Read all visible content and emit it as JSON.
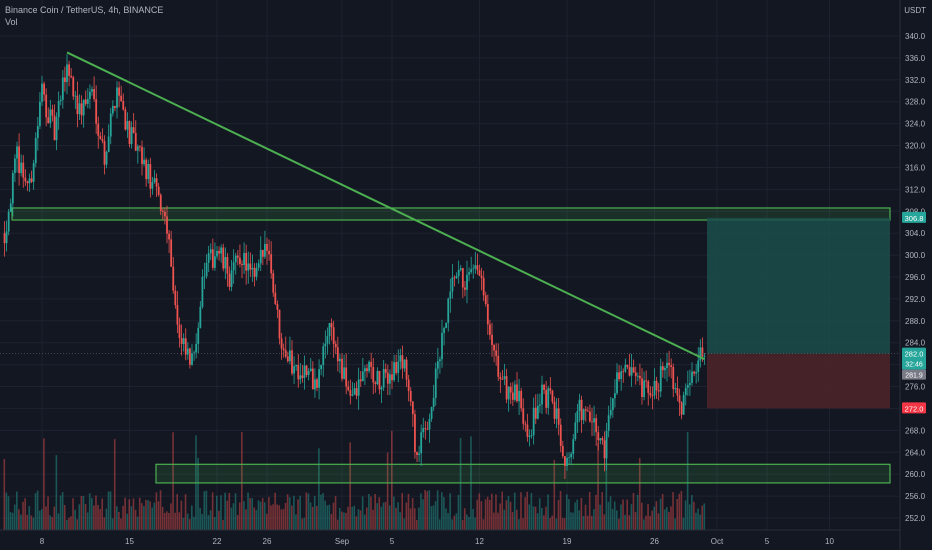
{
  "header": {
    "symbol_line": "Binance Coin / TetherUS, 4h, BINANCE",
    "indicator_label": "Vol"
  },
  "axis": {
    "unit_label": "USDT",
    "y_ticks": [
      "340.0",
      "336.0",
      "332.0",
      "328.0",
      "324.0",
      "320.0",
      "316.0",
      "312.0",
      "308.0",
      "304.0",
      "300.0",
      "296.0",
      "292.0",
      "288.0",
      "284.0",
      "280.0",
      "276.0",
      "272.0",
      "268.0",
      "264.0",
      "260.0",
      "256.0",
      "252.0"
    ],
    "x_ticks": [
      "8",
      "15",
      "22",
      "26",
      "Sep",
      "5",
      "12",
      "19",
      "26",
      "Oct",
      "5",
      "10"
    ]
  },
  "price_tags": {
    "target": "306.8",
    "current": "282.0",
    "countdown": "32:46",
    "prev": "281.9",
    "stop": "272.0"
  },
  "colors": {
    "background": "#131722",
    "up": "#26a69a",
    "down": "#ef5350",
    "trendline": "#4caf50",
    "zone_stroke": "#4caf50",
    "target_zone": "#1b4d4a",
    "stop_zone": "#4a2329"
  },
  "chart_data": {
    "type": "candlestick",
    "timeframe": "4h",
    "x_dates": [
      "Aug 8",
      "Aug 15",
      "Aug 22",
      "Aug 26",
      "Sep 1",
      "Sep 5",
      "Sep 12",
      "Sep 19",
      "Sep 26",
      "Oct 1",
      "Oct 5",
      "Oct 10"
    ],
    "ylim": [
      250,
      343
    ],
    "price_path": [
      [
        "Aug 5",
        304
      ],
      [
        "Aug 6",
        318
      ],
      [
        "Aug 7",
        312
      ],
      [
        "Aug 8",
        330
      ],
      [
        "Aug 9",
        322
      ],
      [
        "Aug 10",
        335
      ],
      [
        "Aug 11",
        326
      ],
      [
        "Aug 12",
        330
      ],
      [
        "Aug 13",
        318
      ],
      [
        "Aug 14",
        331
      ],
      [
        "Aug 15",
        322
      ],
      [
        "Aug 16",
        317
      ],
      [
        "Aug 17",
        312
      ],
      [
        "Aug 18",
        306
      ],
      [
        "Aug 19",
        284
      ],
      [
        "Aug 20",
        280
      ],
      [
        "Aug 21",
        297
      ],
      [
        "Aug 22",
        301
      ],
      [
        "Aug 23",
        296
      ],
      [
        "Aug 24",
        300
      ],
      [
        "Aug 25",
        295
      ],
      [
        "Aug 26",
        303
      ],
      [
        "Aug 27",
        286
      ],
      [
        "Aug 28",
        280
      ],
      [
        "Aug 29",
        279
      ],
      [
        "Aug 30",
        276
      ],
      [
        "Aug 31",
        288
      ],
      [
        "Sep 1",
        278
      ],
      [
        "Sep 2",
        274
      ],
      [
        "Sep 3",
        280
      ],
      [
        "Sep 4",
        276
      ],
      [
        "Sep 5",
        279
      ],
      [
        "Sep 6",
        281
      ],
      [
        "Sep 7",
        263
      ],
      [
        "Sep 8",
        271
      ],
      [
        "Sep 9",
        284
      ],
      [
        "Sep 10",
        296
      ],
      [
        "Sep 11",
        295
      ],
      [
        "Sep 12",
        297
      ],
      [
        "Sep 13",
        282
      ],
      [
        "Sep 14",
        276
      ],
      [
        "Sep 15",
        274
      ],
      [
        "Sep 16",
        268
      ],
      [
        "Sep 17",
        275
      ],
      [
        "Sep 18",
        272
      ],
      [
        "Sep 19",
        262
      ],
      [
        "Sep 20",
        272
      ],
      [
        "Sep 21",
        269
      ],
      [
        "Sep 22",
        265
      ],
      [
        "Sep 23",
        279
      ],
      [
        "Sep 24",
        278
      ],
      [
        "Sep 25",
        275
      ],
      [
        "Sep 26",
        275
      ],
      [
        "Sep 27",
        282
      ],
      [
        "Sep 28",
        271
      ],
      [
        "Sep 29",
        280
      ],
      [
        "Sep 30",
        282
      ]
    ],
    "trendline": {
      "from": [
        "Aug 10",
        337
      ],
      "to": [
        "Sep 30",
        281
      ]
    },
    "resistance_zone": [
      306.4,
      308.6
    ],
    "support_zone": [
      258.4,
      261.8
    ],
    "position": {
      "entry": 282.0,
      "target": 306.8,
      "stop": 272.0
    },
    "volume": "shown below price, colored by candle direction"
  }
}
